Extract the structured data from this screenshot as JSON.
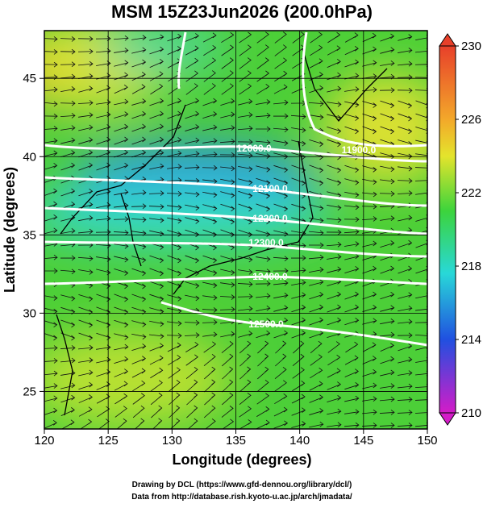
{
  "title": "MSM 15Z23Jun2026 (200.0hPa)",
  "axes": {
    "x_label": "Longitude (degrees)",
    "y_label": "Latitude  (degrees)",
    "xlim": [
      120,
      150
    ],
    "xticks": [
      120,
      125,
      130,
      135,
      140,
      145,
      150
    ],
    "ylim": [
      22.6,
      48.05
    ],
    "yticks": [
      25,
      30,
      35,
      40,
      45
    ]
  },
  "colorbar": {
    "lim": [
      210,
      230
    ],
    "ticks": [
      210,
      214,
      218,
      222,
      226,
      230
    ]
  },
  "contour_labels": [
    "12000.0",
    "11900.0",
    "12100.0",
    "12200.0",
    "12300.0",
    "12400.0",
    "12500.0"
  ],
  "footer": [
    "Drawing by DCL (https://www.gfd-dennou.org/library/dcl/)",
    "Data from http://database.rish.kyoto-u.ac.jp/arch/jmadata/"
  ]
}
